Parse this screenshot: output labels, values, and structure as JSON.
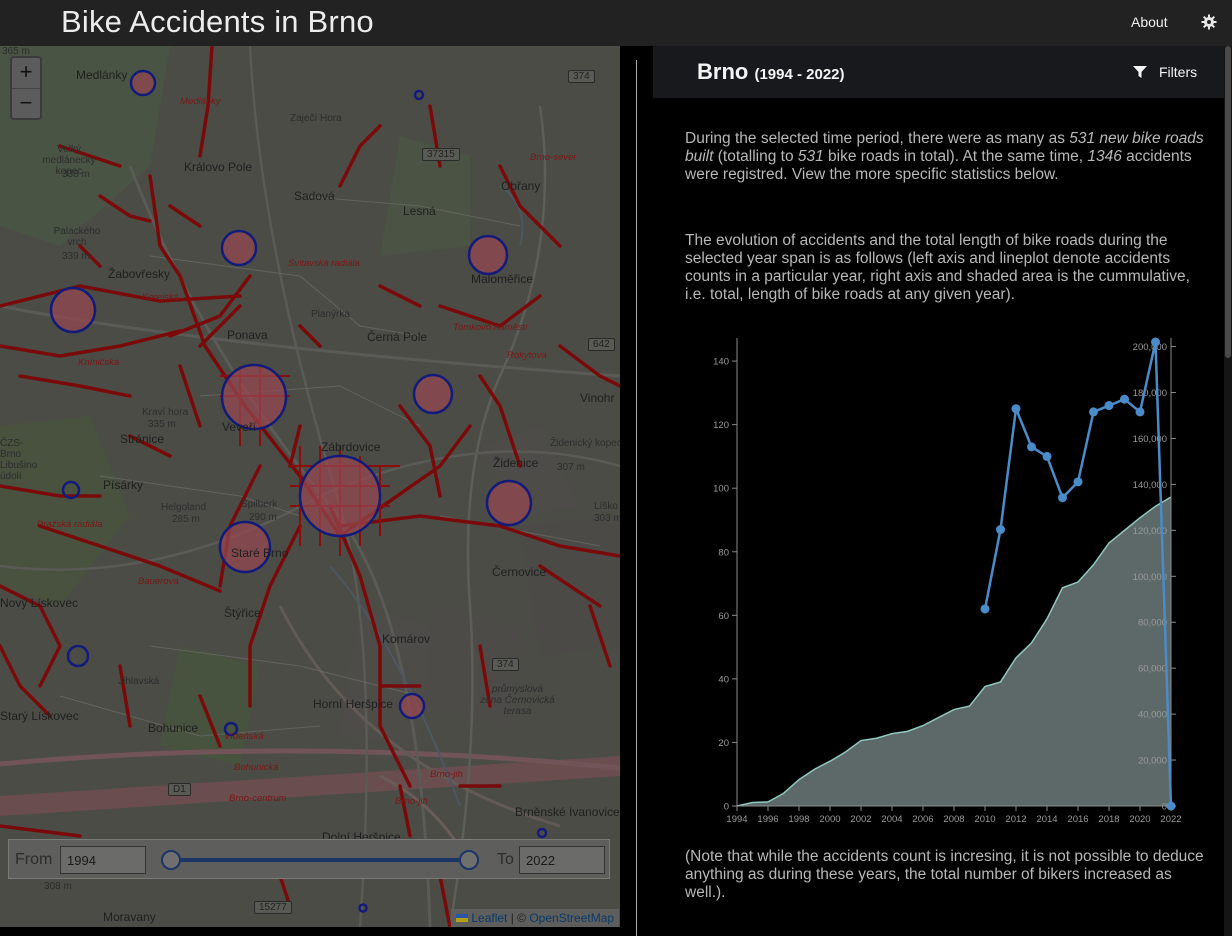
{
  "app": {
    "title": "Bike Accidents in Brno"
  },
  "nav": {
    "about_label": "About",
    "settings_icon": "gear-icon"
  },
  "map": {
    "zoom_in_label": "+",
    "zoom_out_label": "−",
    "labels": [
      {
        "text": "Medlánky",
        "cls": ""
      },
      {
        "text": "Zaječí Hora",
        "cls": "small"
      },
      {
        "text": "Velký medlánecký kopec",
        "cls": "small"
      },
      {
        "text": "338 m",
        "cls": "small"
      },
      {
        "text": "Královo Pole",
        "cls": ""
      },
      {
        "text": "Sadová",
        "cls": ""
      },
      {
        "text": "Lesná",
        "cls": ""
      },
      {
        "text": "Obřany",
        "cls": ""
      },
      {
        "text": "Palackého vrch",
        "cls": "small"
      },
      {
        "text": "339 m",
        "cls": "small"
      },
      {
        "text": "Žabovřesky",
        "cls": ""
      },
      {
        "text": "Maloměřice",
        "cls": ""
      },
      {
        "text": "Planýrka",
        "cls": "small"
      },
      {
        "text": "Ponava",
        "cls": ""
      },
      {
        "text": "Černá Pole",
        "cls": ""
      },
      {
        "text": "Kraví hora",
        "cls": "small"
      },
      {
        "text": "335 m",
        "cls": "small"
      },
      {
        "text": "Veveří",
        "cls": ""
      },
      {
        "text": "Stránice",
        "cls": ""
      },
      {
        "text": "Zábrdovice",
        "cls": ""
      },
      {
        "text": "Vinohr",
        "cls": ""
      },
      {
        "text": "Židenice",
        "cls": ""
      },
      {
        "text": "Židenický kopec",
        "cls": "small"
      },
      {
        "text": "307 m",
        "cls": "small"
      },
      {
        "text": "Písárky",
        "cls": ""
      },
      {
        "text": "Helgoland",
        "cls": "small"
      },
      {
        "text": "285 m",
        "cls": "small"
      },
      {
        "text": "Špilberk",
        "cls": "small"
      },
      {
        "text": "290 m",
        "cls": "small"
      },
      {
        "text": "Líško",
        "cls": "small"
      },
      {
        "text": "303 m",
        "cls": "small"
      },
      {
        "text": "Staré Brno",
        "cls": ""
      },
      {
        "text": "Černovice",
        "cls": ""
      },
      {
        "text": "Nový Lískovec",
        "cls": ""
      },
      {
        "text": "Štýřice",
        "cls": ""
      },
      {
        "text": "Komárov",
        "cls": ""
      },
      {
        "text": "průmyslová zóna Černovická terasa",
        "cls": "small"
      },
      {
        "text": "Starý Lískovec",
        "cls": ""
      },
      {
        "text": "Bohunice",
        "cls": ""
      },
      {
        "text": "Horní Heršpice",
        "cls": ""
      },
      {
        "text": "Brněnské Ivanovice",
        "cls": ""
      },
      {
        "text": "Dolní Heršpice",
        "cls": ""
      },
      {
        "text": "308 m",
        "cls": "small"
      },
      {
        "text": "Moravany",
        "cls": ""
      },
      {
        "text": "Svitavská radiála",
        "cls": "italic-red"
      },
      {
        "text": "Korejská",
        "cls": "italic-red"
      },
      {
        "text": "Tomkovo náměstí",
        "cls": "italic-red"
      },
      {
        "text": "Rokytova",
        "cls": "italic-red"
      },
      {
        "text": "Kníničská",
        "cls": "italic-red"
      },
      {
        "text": "Pražská radiála",
        "cls": "italic-red"
      },
      {
        "text": "Bauerova",
        "cls": "italic-red"
      },
      {
        "text": "Vídeňská",
        "cls": "italic-red"
      },
      {
        "text": "Bohunická",
        "cls": "italic-red"
      },
      {
        "text": "Brno-centrum",
        "cls": "italic-red"
      },
      {
        "text": "Brno-jih",
        "cls": "italic-red"
      },
      {
        "text": "Brno-sever",
        "cls": "italic-red"
      },
      {
        "text": "Brno-jih",
        "cls": "italic-red"
      },
      {
        "text": "365 m",
        "cls": "small"
      },
      {
        "text": "Medlánky",
        "cls": "italic-red"
      },
      {
        "text": "Jihlavská",
        "cls": "small"
      },
      {
        "text": "ČZS-Brno Libušino údolí",
        "cls": "small"
      }
    ],
    "shields": [
      "374",
      "37315",
      "642",
      "374",
      "D1",
      "15277"
    ],
    "attribution": {
      "leaflet": "Leaflet",
      "sep": " | © ",
      "osm": "OpenStreetMap"
    },
    "year_control": {
      "from_label": "From",
      "from_value": "1994",
      "to_label": "To",
      "to_value": "2022"
    }
  },
  "panel": {
    "city": "Brno",
    "year_span": "(1994 - 2022)",
    "filters_label": "Filters",
    "intro": {
      "t1": "During the selected time period, there were as many as ",
      "roads_new": "531 new bike roads built",
      "t2": " (totalling to ",
      "roads_total": "531",
      "t3": " bike roads in total). At the same time, ",
      "accidents": "1346",
      "t4": " accidents were registred. View the more specific statistics below."
    },
    "evolution_text": "The evolution of accidents and the total length of bike roads during the selected year span is as follows (left axis and lineplot denote accidents counts in a particular year, right axis and shaded area is the cummulative, i.e. total, length of bike roads at any given year).",
    "note_text": "(Note that while the accidents count is incresing, it is not possible to deduce anything as during these years, the total number of bikers increased as well.)."
  },
  "chart_data": {
    "type": "line",
    "x_ticks": [
      "1994",
      "1996",
      "1998",
      "2000",
      "2002",
      "2004",
      "2006",
      "2008",
      "2010",
      "2012",
      "2014",
      "2016",
      "2018",
      "2020",
      "2022"
    ],
    "y_left_ticks": [
      "0",
      "20",
      "40",
      "60",
      "80",
      "100",
      "120",
      "140"
    ],
    "y_right_ticks": [
      "0",
      "20,000",
      "40,000",
      "60,000",
      "80,000",
      "100,000",
      "120,000",
      "140,000",
      "160,000",
      "180,000",
      "200,000"
    ],
    "xlim": [
      1994,
      2022
    ],
    "ylim_left": [
      0,
      146
    ],
    "ylim_right": [
      0,
      202000
    ],
    "area_series": {
      "x": [
        1994,
        1995,
        1996,
        1997,
        1998,
        1999,
        2000,
        2001,
        2002,
        2003,
        2004,
        2005,
        2006,
        2007,
        2008,
        2009,
        2010,
        2011,
        2012,
        2013,
        2014,
        2015,
        2016,
        2017,
        2018,
        2019,
        2020,
        2021,
        2022
      ],
      "values": [
        0,
        1500,
        1800,
        5500,
        11500,
        16000,
        19500,
        23500,
        28500,
        29500,
        31500,
        32500,
        35000,
        38500,
        42000,
        43500,
        52000,
        54000,
        64500,
        71000,
        81500,
        95000,
        97500,
        105000,
        114500,
        120000,
        125500,
        130500,
        134500
      ]
    },
    "line_series": {
      "x": [
        2010,
        2011,
        2012,
        2013,
        2014,
        2015,
        2016,
        2017,
        2018,
        2019,
        2020,
        2021,
        2022
      ],
      "values": [
        62,
        87,
        125,
        113,
        110,
        97,
        102,
        124,
        126,
        128,
        124,
        146,
        0
      ]
    },
    "colors": {
      "line": "#4a8cc9",
      "area": "#5d6968",
      "area_edge": "#8fc9bf",
      "axis": "#8a8a8a"
    }
  }
}
